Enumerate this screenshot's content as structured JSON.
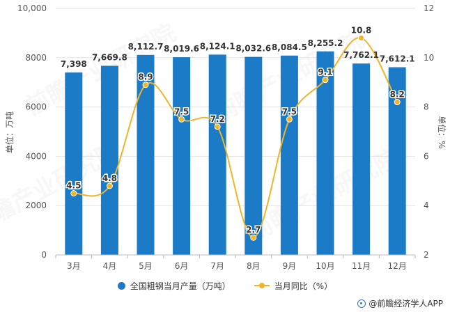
{
  "chart_data": {
    "type": "bar+line",
    "categories": [
      "3月",
      "4月",
      "5月",
      "6月",
      "7月",
      "8月",
      "9月",
      "10月",
      "11月",
      "12月"
    ],
    "series": [
      {
        "name": "全国粗钢当月产量（万吨）",
        "type": "bar",
        "axis": "left",
        "color": "#1b7bc7",
        "values": [
          7398,
          7669.8,
          8112.7,
          8019.6,
          8124.1,
          8032.6,
          8084.5,
          8255.2,
          7762.1,
          7612.1
        ],
        "labels": [
          "7,398",
          "7,669.8",
          "8,112.7",
          "8,019.6",
          "8,124.1",
          "8,032.6",
          "8,084.5",
          "8,255.2",
          "7,762.1",
          "7,612.1"
        ]
      },
      {
        "name": "当月同比（%）",
        "type": "line",
        "axis": "right",
        "color": "#f0b429",
        "values": [
          4.5,
          4.8,
          8.9,
          7.5,
          7.2,
          2.7,
          7.5,
          9.1,
          10.8,
          8.2
        ],
        "labels": [
          "4.5",
          "4.8",
          "8.9",
          "7.5",
          "7.2",
          "2.7",
          "7.5",
          "9.1",
          "10.8",
          "8.2"
        ]
      }
    ],
    "ylabel_left": "单位：万吨",
    "ylabel_right": "单位：%",
    "ylim_left": [
      0,
      10000
    ],
    "ylim_right": [
      2,
      12
    ],
    "yticks_left": [
      "0",
      "2000",
      "4000",
      "6000",
      "8000",
      "10,000"
    ],
    "yticks_right": [
      "2",
      "4",
      "6",
      "8",
      "10",
      "12"
    ],
    "grid": true,
    "legend_position": "bottom"
  },
  "legend": {
    "bar_label": "全国粗钢当月产量（万吨）",
    "line_label": "当月同比（%）"
  },
  "source": {
    "text": "@前瞻经济学人APP"
  },
  "watermark": {
    "text": "前瞻产业研究院"
  }
}
